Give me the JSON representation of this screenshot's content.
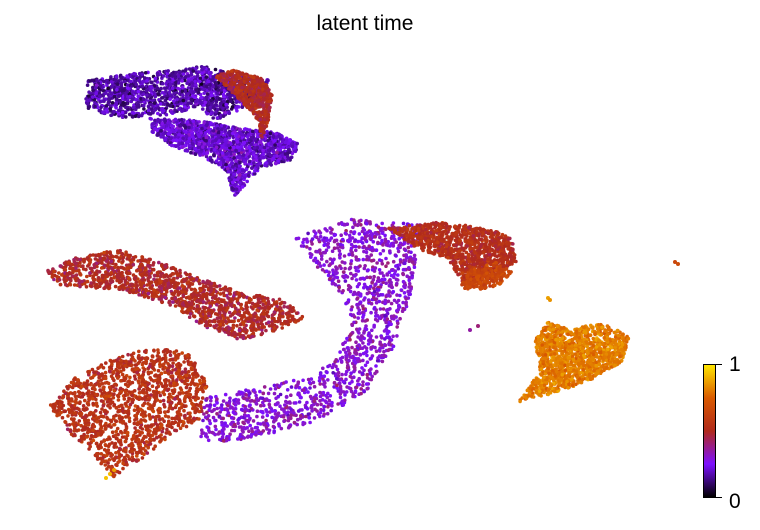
{
  "chart_data": {
    "type": "scatter",
    "title": "latent time",
    "xlabel": "",
    "ylabel": "",
    "grid": false,
    "colorbar": {
      "label": "",
      "min_label": "0",
      "max_label": "1",
      "colormap": "gnuplot",
      "colors": [
        "#000000",
        "#7d10ff",
        "#b02a1c",
        "#d95a00",
        "#ffe600"
      ]
    },
    "clusters": [
      {
        "name": "",
        "t_mean": 0.2,
        "t_spread": 0.18
      },
      {
        "name": "",
        "t_mean": 0.25,
        "t_spread": 0.18
      },
      {
        "name": "",
        "t_mean": 0.55,
        "t_spread": 0.15
      },
      {
        "name": "",
        "t_mean": 0.6,
        "t_spread": 0.15
      },
      {
        "name": "",
        "t_mean": 0.35,
        "t_spread": 0.15
      },
      {
        "name": "",
        "t_mean": 0.58,
        "t_spread": 0.12
      },
      {
        "name": "",
        "t_mean": 0.85,
        "t_spread": 0.08
      },
      {
        "name": "",
        "t_mean": 0.55,
        "t_spread": 0.12
      },
      {
        "name": "",
        "t_mean": 0.7,
        "t_spread": 0.1
      }
    ]
  }
}
